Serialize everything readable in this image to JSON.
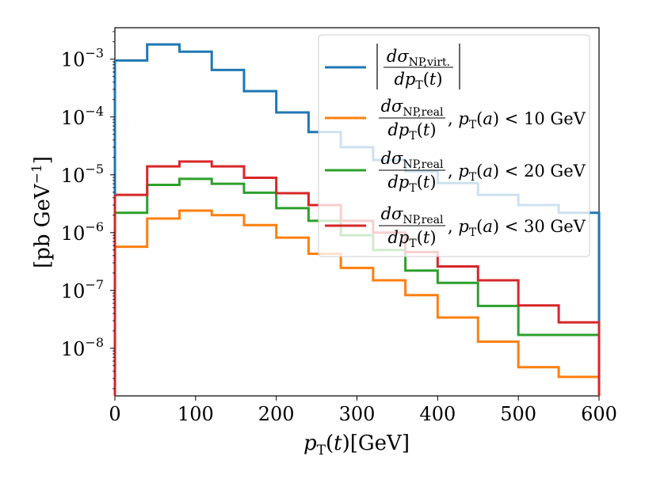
{
  "chart_data": {
    "type": "line",
    "style": "step histogram",
    "xlabel": "p_T(t)[GeV]",
    "ylabel": "[pb GeV^-1]",
    "xlim": [
      0,
      600
    ],
    "ylim": [
      1.5e-09,
      0.0035
    ],
    "yscale": "log",
    "grid": false,
    "legend_position": "upper-right",
    "x_ticks": [
      0,
      100,
      200,
      300,
      400,
      500,
      600
    ],
    "y_ticks": [
      {
        "value": 0.001,
        "label": "10^-3"
      },
      {
        "value": 0.0001,
        "label": "10^-4"
      },
      {
        "value": 1e-05,
        "label": "10^-5"
      },
      {
        "value": 1e-06,
        "label": "10^-6"
      },
      {
        "value": 1e-07,
        "label": "10^-7"
      },
      {
        "value": 1e-08,
        "label": "10^-8"
      }
    ],
    "bin_edges": [
      0,
      40,
      80,
      120,
      160,
      200,
      240,
      280,
      320,
      360,
      400,
      450,
      500,
      550,
      600
    ],
    "series": [
      {
        "name": "|dσ_NP,virt. / dp_T(t)|",
        "color": "#1f77b4",
        "values": [
          0.00095,
          0.0018,
          0.00135,
          0.00065,
          0.00028,
          0.00012,
          5.5e-05,
          3e-05,
          1.8e-05,
          1.15e-05,
          7.2e-06,
          4.5e-06,
          3e-06,
          2.2e-06
        ]
      },
      {
        "name": "dσ_NP,real / dp_T(t), p_T(a) < 10 GeV",
        "color": "#ff7f0e",
        "values": [
          5.7e-07,
          1.75e-06,
          2.4e-06,
          2e-06,
          1.35e-06,
          8.2e-07,
          4.3e-07,
          2.45e-07,
          1.5e-07,
          8.3e-08,
          3.4e-08,
          1.3e-08,
          4.7e-09,
          3.2e-09
        ]
      },
      {
        "name": "dσ_NP,real / dp_T(t), p_T(a) < 20 GeV",
        "color": "#2ca02c",
        "values": [
          2.2e-06,
          6.7e-06,
          8.5e-06,
          7e-06,
          4.9e-06,
          2.65e-06,
          1.6e-06,
          9e-07,
          5e-07,
          2.2e-07,
          1.35e-07,
          5.4e-08,
          1.7e-08,
          1.7e-08
        ]
      },
      {
        "name": "dσ_NP,real / dp_T(t), p_T(a) < 30 GeV",
        "color": "#d62728",
        "values": [
          4.5e-06,
          1.4e-05,
          1.7e-05,
          1.4e-05,
          8.9e-06,
          4.8e-06,
          3e-06,
          1.6e-06,
          1e-06,
          4.6e-07,
          2.6e-07,
          1.5e-07,
          5.5e-08,
          2.8e-08
        ]
      }
    ]
  }
}
